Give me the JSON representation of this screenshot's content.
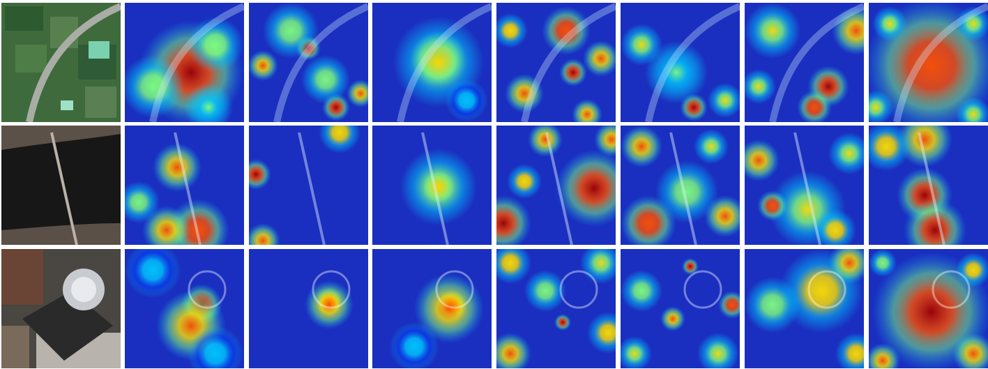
{
  "figure": {
    "rows": [
      {
        "scene": "farmland-with-curved-road",
        "panels": [
          "photo",
          "heatmap-1",
          "heatmap-2",
          "heatmap-3",
          "heatmap-4",
          "heatmap-5",
          "heatmap-6",
          "heatmap-7"
        ]
      },
      {
        "scene": "bridge-over-river",
        "panels": [
          "photo",
          "heatmap-1",
          "heatmap-2",
          "heatmap-3",
          "heatmap-4",
          "heatmap-5",
          "heatmap-6",
          "heatmap-7"
        ]
      },
      {
        "scene": "domed-building-plaza",
        "panels": [
          "photo",
          "heatmap-1",
          "heatmap-2",
          "heatmap-3",
          "heatmap-4",
          "heatmap-5",
          "heatmap-6",
          "heatmap-7"
        ]
      }
    ],
    "colormap": [
      "#00008f",
      "#0040ff",
      "#00c8ff",
      "#7fff7f",
      "#ffe000",
      "#ff5000",
      "#a00000"
    ]
  }
}
